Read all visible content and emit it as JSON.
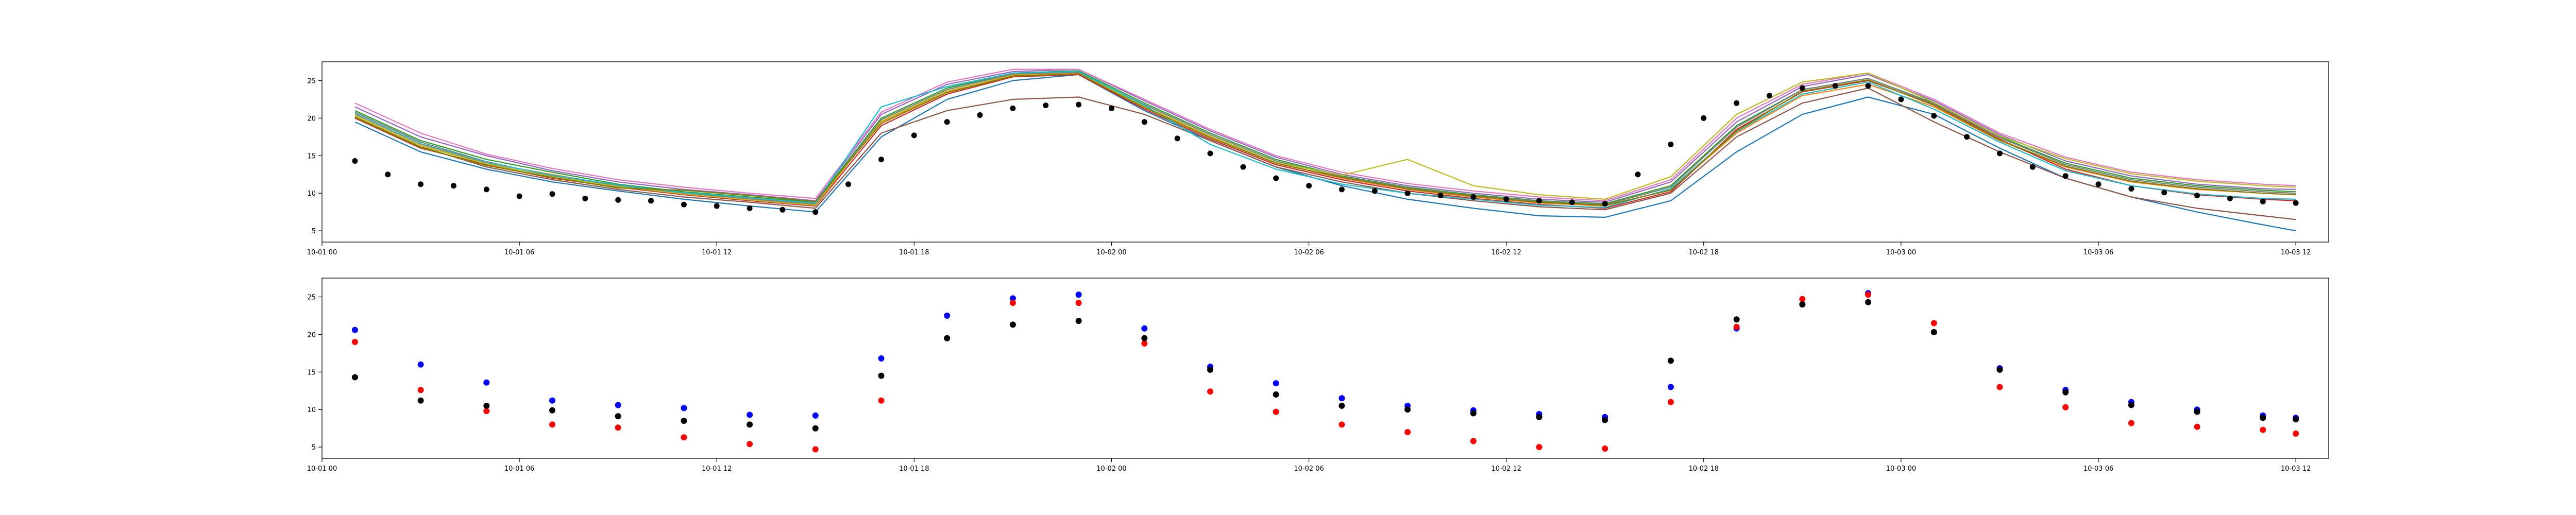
{
  "chart_data": [
    {
      "type": "line",
      "title": "",
      "xlabel": "",
      "ylabel": "",
      "grid": false,
      "xlim": [
        "2023-10-01 00:00",
        "2023-10-03 13:00"
      ],
      "ylim": [
        3.5,
        27.5
      ],
      "xticks": [
        {
          "t": "10-01 00:00",
          "label": "10-01 00"
        },
        {
          "t": "10-01 06:00",
          "label": "10-01 06"
        },
        {
          "t": "10-01 12:00",
          "label": "10-01 12"
        },
        {
          "t": "10-01 18:00",
          "label": "10-01 18"
        },
        {
          "t": "10-02 00:00",
          "label": "10-02 00"
        },
        {
          "t": "10-02 06:00",
          "label": "10-02 06"
        },
        {
          "t": "10-02 12:00",
          "label": "10-02 12"
        },
        {
          "t": "10-02 18:00",
          "label": "10-02 18"
        },
        {
          "t": "10-03 00:00",
          "label": "10-03 00"
        },
        {
          "t": "10-03 06:00",
          "label": "10-03 06"
        },
        {
          "t": "10-03 12:00",
          "label": "10-03 12"
        }
      ],
      "yticks": [
        5,
        10,
        15,
        20,
        25
      ],
      "line_times": [
        "10-01 01:00",
        "10-01 03:00",
        "10-01 05:00",
        "10-01 07:00",
        "10-01 09:00",
        "10-01 11:00",
        "10-01 13:00",
        "10-01 15:00",
        "10-01 17:00",
        "10-01 19:00",
        "10-01 21:00",
        "10-01 23:00",
        "10-02 01:00",
        "10-02 03:00",
        "10-02 05:00",
        "10-02 07:00",
        "10-02 09:00",
        "10-02 11:00",
        "10-02 13:00",
        "10-02 15:00",
        "10-02 17:00",
        "10-02 19:00",
        "10-02 21:00",
        "10-02 23:00",
        "10-03 01:00",
        "10-03 03:00",
        "10-03 05:00",
        "10-03 07:00",
        "10-03 09:00",
        "10-03 11:00",
        "10-03 12:00"
      ],
      "series": [
        {
          "color": "#1f77b4",
          "values": [
            19.5,
            15.5,
            13.2,
            11.5,
            10.3,
            9.2,
            8.3,
            7.5,
            17.5,
            22.5,
            25.0,
            25.8,
            21.0,
            17.0,
            13.5,
            11.0,
            9.2,
            8.0,
            7.0,
            6.8,
            9.0,
            15.5,
            20.5,
            22.8,
            20.5,
            16.0,
            12.0,
            9.5,
            7.5,
            5.8,
            5.0
          ]
        },
        {
          "color": "#ff7f0e",
          "values": [
            20.5,
            16.5,
            14.0,
            12.5,
            11.0,
            10.0,
            9.3,
            8.5,
            19.5,
            23.5,
            25.8,
            26.0,
            21.5,
            17.5,
            14.0,
            12.0,
            10.5,
            9.5,
            8.7,
            8.3,
            10.5,
            18.0,
            23.0,
            24.5,
            21.5,
            17.0,
            13.5,
            11.5,
            10.5,
            10.0,
            9.8
          ]
        },
        {
          "color": "#2ca02c",
          "values": [
            21.0,
            17.0,
            14.5,
            12.8,
            11.2,
            10.2,
            9.5,
            8.8,
            20.0,
            24.0,
            26.0,
            26.3,
            22.0,
            18.0,
            14.5,
            12.3,
            10.8,
            9.8,
            9.0,
            8.6,
            11.0,
            19.0,
            23.8,
            25.3,
            22.0,
            17.5,
            14.0,
            12.0,
            11.0,
            10.4,
            10.2
          ]
        },
        {
          "color": "#d62728",
          "values": [
            20.0,
            16.0,
            13.8,
            12.0,
            10.8,
            9.8,
            9.0,
            8.3,
            19.0,
            23.2,
            25.5,
            25.8,
            21.2,
            17.2,
            13.8,
            11.8,
            10.3,
            9.3,
            8.5,
            8.0,
            10.2,
            18.5,
            23.5,
            25.0,
            21.8,
            17.2,
            13.2,
            11.0,
            9.8,
            9.2,
            9.0
          ]
        },
        {
          "color": "#9467bd",
          "values": [
            21.5,
            17.5,
            15.0,
            13.0,
            11.5,
            10.5,
            9.8,
            9.0,
            20.5,
            24.5,
            26.2,
            26.5,
            22.3,
            18.3,
            14.8,
            12.5,
            11.0,
            10.0,
            9.2,
            8.8,
            11.5,
            19.5,
            24.2,
            25.8,
            22.3,
            17.8,
            14.3,
            12.3,
            11.2,
            10.6,
            10.5
          ]
        },
        {
          "color": "#8c564b",
          "values": [
            20.2,
            16.2,
            13.5,
            11.8,
            10.5,
            9.5,
            8.8,
            8.0,
            18.0,
            21.0,
            22.5,
            22.8,
            20.5,
            17.0,
            13.5,
            11.5,
            10.0,
            9.0,
            8.2,
            7.8,
            10.0,
            17.5,
            22.0,
            24.0,
            19.5,
            15.5,
            12.0,
            9.5,
            8.0,
            7.0,
            6.5
          ]
        },
        {
          "color": "#e377c2",
          "values": [
            22.0,
            18.0,
            15.2,
            13.3,
            11.8,
            10.8,
            10.0,
            9.3,
            20.8,
            24.8,
            26.5,
            26.5,
            22.5,
            18.5,
            15.0,
            12.8,
            11.3,
            10.3,
            9.5,
            9.0,
            11.8,
            20.0,
            24.5,
            26.0,
            22.5,
            18.0,
            14.8,
            12.8,
            11.8,
            11.2,
            11.0
          ]
        },
        {
          "color": "#7f7f7f",
          "values": [
            20.8,
            16.8,
            14.2,
            12.3,
            11.0,
            10.0,
            9.2,
            8.6,
            19.8,
            23.8,
            25.9,
            26.1,
            21.8,
            17.8,
            14.3,
            12.2,
            10.7,
            9.7,
            8.9,
            8.5,
            10.8,
            18.8,
            23.8,
            25.3,
            21.9,
            17.4,
            13.8,
            11.8,
            10.8,
            10.2,
            10.0
          ]
        },
        {
          "color": "#bcbd22",
          "values": [
            20.3,
            16.3,
            13.9,
            12.2,
            10.9,
            9.9,
            9.1,
            8.4,
            19.6,
            23.6,
            25.7,
            25.9,
            21.6,
            17.6,
            14.1,
            12.4,
            14.5,
            11.0,
            9.8,
            9.2,
            12.2,
            20.5,
            24.8,
            26.0,
            22.1,
            17.6,
            14.6,
            12.6,
            11.6,
            11.0,
            10.8
          ]
        },
        {
          "color": "#17becf",
          "values": [
            20.6,
            16.6,
            14.1,
            12.4,
            11.1,
            10.1,
            9.4,
            8.7,
            21.5,
            24.2,
            26.0,
            26.2,
            21.7,
            16.5,
            13.2,
            11.2,
            10.0,
            9.2,
            8.4,
            8.1,
            10.6,
            18.2,
            23.2,
            24.8,
            21.2,
            16.8,
            13.0,
            11.0,
            9.9,
            9.3,
            9.2
          ]
        },
        {
          "color": "#808000",
          "values": [
            20.1,
            16.1,
            13.7,
            12.1,
            10.7,
            10.4,
            9.7,
            8.9,
            19.3,
            23.4,
            25.6,
            25.9,
            21.4,
            17.4,
            14.0,
            12.1,
            10.6,
            9.6,
            8.8,
            8.4,
            10.4,
            18.3,
            23.6,
            25.1,
            21.7,
            17.1,
            13.6,
            11.6,
            10.6,
            10.0,
            9.8
          ]
        }
      ],
      "scatter_color": "#000000",
      "points_times": [
        "10-01 01:00",
        "10-01 02:00",
        "10-01 03:00",
        "10-01 04:00",
        "10-01 05:00",
        "10-01 06:00",
        "10-01 07:00",
        "10-01 08:00",
        "10-01 09:00",
        "10-01 10:00",
        "10-01 11:00",
        "10-01 12:00",
        "10-01 13:00",
        "10-01 14:00",
        "10-01 15:00",
        "10-01 16:00",
        "10-01 17:00",
        "10-01 18:00",
        "10-01 19:00",
        "10-01 20:00",
        "10-01 21:00",
        "10-01 22:00",
        "10-01 23:00",
        "10-02 00:00",
        "10-02 01:00",
        "10-02 02:00",
        "10-02 03:00",
        "10-02 04:00",
        "10-02 05:00",
        "10-02 06:00",
        "10-02 07:00",
        "10-02 08:00",
        "10-02 09:00",
        "10-02 10:00",
        "10-02 11:00",
        "10-02 12:00",
        "10-02 13:00",
        "10-02 14:00",
        "10-02 15:00",
        "10-02 16:00",
        "10-02 17:00",
        "10-02 18:00",
        "10-02 19:00",
        "10-02 20:00",
        "10-02 21:00",
        "10-02 22:00",
        "10-02 23:00",
        "10-03 00:00",
        "10-03 01:00",
        "10-03 02:00",
        "10-03 03:00",
        "10-03 04:00",
        "10-03 05:00",
        "10-03 06:00",
        "10-03 07:00",
        "10-03 08:00",
        "10-03 09:00",
        "10-03 10:00",
        "10-03 11:00",
        "10-03 12:00"
      ],
      "points": [
        14.3,
        12.5,
        11.2,
        11.0,
        10.5,
        9.6,
        9.9,
        9.3,
        9.1,
        9.0,
        8.5,
        8.3,
        8.0,
        7.8,
        7.5,
        11.2,
        14.5,
        17.7,
        19.5,
        20.4,
        21.3,
        21.7,
        21.8,
        21.3,
        19.5,
        17.3,
        15.3,
        13.5,
        12.0,
        11.0,
        10.5,
        10.3,
        10.0,
        9.7,
        9.5,
        9.2,
        9.0,
        8.8,
        8.6,
        12.5,
        16.5,
        20.0,
        22.0,
        23.0,
        24.0,
        24.3,
        24.3,
        22.5,
        20.3,
        17.5,
        15.3,
        13.5,
        12.3,
        11.2,
        10.6,
        10.1,
        9.7,
        9.3,
        8.9,
        8.7
      ]
    },
    {
      "type": "scatter",
      "title": "",
      "xlabel": "",
      "ylabel": "",
      "grid": false,
      "xlim": [
        "2023-10-01 00:00",
        "2023-10-03 13:00"
      ],
      "ylim": [
        3.5,
        27.5
      ],
      "xticks": [
        {
          "t": "10-01 00:00",
          "label": "10-01 00"
        },
        {
          "t": "10-01 06:00",
          "label": "10-01 06"
        },
        {
          "t": "10-01 12:00",
          "label": "10-01 12"
        },
        {
          "t": "10-01 18:00",
          "label": "10-01 18"
        },
        {
          "t": "10-02 00:00",
          "label": "10-02 00"
        },
        {
          "t": "10-02 06:00",
          "label": "10-02 06"
        },
        {
          "t": "10-02 12:00",
          "label": "10-02 12"
        },
        {
          "t": "10-02 18:00",
          "label": "10-02 18"
        },
        {
          "t": "10-03 00:00",
          "label": "10-03 00"
        },
        {
          "t": "10-03 06:00",
          "label": "10-03 06"
        },
        {
          "t": "10-03 12:00",
          "label": "10-03 12"
        }
      ],
      "yticks": [
        5,
        10,
        15,
        20,
        25
      ],
      "x": [
        "10-01 01:00",
        "10-01 03:00",
        "10-01 05:00",
        "10-01 07:00",
        "10-01 09:00",
        "10-01 11:00",
        "10-01 13:00",
        "10-01 15:00",
        "10-01 17:00",
        "10-01 19:00",
        "10-01 21:00",
        "10-01 23:00",
        "10-02 01:00",
        "10-02 03:00",
        "10-02 05:00",
        "10-02 07:00",
        "10-02 09:00",
        "10-02 11:00",
        "10-02 13:00",
        "10-02 15:00",
        "10-02 17:00",
        "10-02 19:00",
        "10-02 21:00",
        "10-02 23:00",
        "10-03 01:00",
        "10-03 03:00",
        "10-03 05:00",
        "10-03 07:00",
        "10-03 09:00",
        "10-03 11:00",
        "10-03 12:00"
      ],
      "series": [
        {
          "color": "#0000ff",
          "values": [
            20.6,
            16.0,
            13.6,
            11.2,
            10.6,
            10.2,
            9.3,
            9.2,
            16.8,
            22.5,
            24.8,
            25.3,
            20.8,
            15.7,
            13.5,
            11.5,
            10.5,
            9.9,
            9.4,
            9.0,
            13.0,
            20.8,
            24.0,
            25.5,
            20.3,
            15.5,
            12.6,
            11.0,
            10.0,
            9.2,
            8.9
          ]
        },
        {
          "color": "#ff0000",
          "values": [
            19.0,
            12.6,
            9.8,
            8.0,
            7.6,
            6.3,
            5.4,
            4.7,
            11.2,
            19.5,
            24.2,
            24.2,
            18.8,
            12.4,
            9.7,
            8.0,
            7.0,
            5.8,
            5.0,
            4.8,
            11.0,
            21.0,
            24.7,
            25.3,
            21.5,
            13.0,
            10.3,
            8.2,
            7.7,
            7.3,
            6.8
          ]
        },
        {
          "color": "#000000",
          "values": [
            14.3,
            11.2,
            10.5,
            9.9,
            9.1,
            8.5,
            8.0,
            7.5,
            14.5,
            19.5,
            21.3,
            21.8,
            19.5,
            15.3,
            12.0,
            10.5,
            10.0,
            9.5,
            9.0,
            8.6,
            16.5,
            22.0,
            24.0,
            24.3,
            20.3,
            15.3,
            12.3,
            10.6,
            9.7,
            8.9,
            8.7
          ]
        }
      ]
    }
  ]
}
